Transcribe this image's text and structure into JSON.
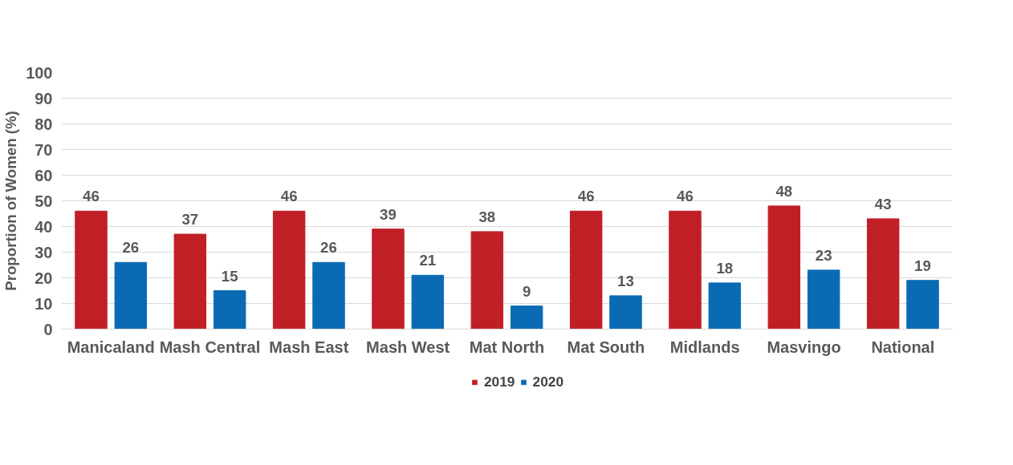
{
  "chart_data": {
    "type": "bar",
    "ylabel": "Proportion of Women (%)",
    "categories": [
      "Manicaland",
      "Mash Central",
      "Mash East",
      "Mash West",
      "Mat North",
      "Mat South",
      "Midlands",
      "Masvingo",
      "National"
    ],
    "series": [
      {
        "name": "2019",
        "color": "#c01f26",
        "values": [
          46,
          37,
          46,
          39,
          38,
          46,
          46,
          48,
          43
        ]
      },
      {
        "name": "2020",
        "color": "#0a6ab4",
        "values": [
          26,
          15,
          26,
          21,
          9,
          13,
          18,
          23,
          19
        ]
      }
    ],
    "ylim": [
      0,
      100
    ],
    "yticks": [
      0,
      10,
      20,
      30,
      40,
      50,
      60,
      70,
      80,
      90,
      100
    ],
    "grid": "y",
    "legend": "bottom",
    "data_labels": true
  }
}
